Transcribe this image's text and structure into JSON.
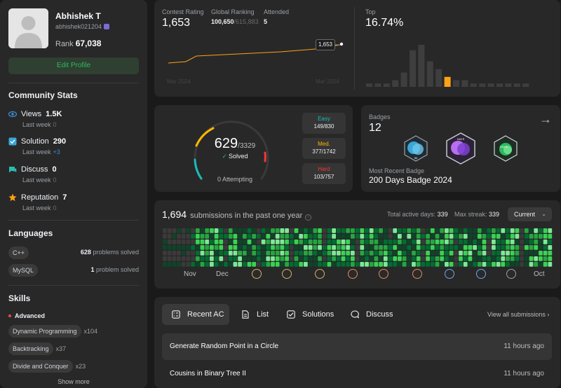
{
  "profile": {
    "name": "Abhishek T",
    "username": "abhishek021204",
    "rank_label": "Rank",
    "rank": "67,038",
    "edit_button": "Edit Profile"
  },
  "community": {
    "title": "Community Stats",
    "stats": [
      {
        "label": "Views",
        "value": "1.5K",
        "sub": "Last week",
        "delta": "0",
        "icon": "eye-icon",
        "color": "#3a8dd6"
      },
      {
        "label": "Solution",
        "value": "290",
        "sub": "Last week",
        "delta": "+3",
        "icon": "check-square-icon",
        "color": "#3aa7d8"
      },
      {
        "label": "Discuss",
        "value": "0",
        "sub": "Last week",
        "delta": "0",
        "icon": "chat-icon",
        "color": "#2cbbb0"
      },
      {
        "label": "Reputation",
        "value": "7",
        "sub": "Last week",
        "delta": "0",
        "icon": "star-icon",
        "color": "#ffa116"
      }
    ]
  },
  "languages": {
    "title": "Languages",
    "items": [
      {
        "name": "C++",
        "count": "628",
        "suffix": "problems solved"
      },
      {
        "name": "MySQL",
        "count": "1",
        "suffix": "problem solved"
      }
    ]
  },
  "skills": {
    "title": "Skills",
    "level": "Advanced",
    "items": [
      {
        "name": "Dynamic Programming",
        "count": "x104"
      },
      {
        "name": "Backtracking",
        "count": "x37"
      },
      {
        "name": "Divide and Conquer",
        "count": "x23"
      }
    ],
    "show_more": "Show more"
  },
  "contest": {
    "rating_label": "Contest Rating",
    "rating": "1,653",
    "global_label": "Global Ranking",
    "global_rank": "100,650",
    "global_total": "/615,883",
    "attended_label": "Attended",
    "attended": "5",
    "tooltip": "1,653",
    "x_start": "Mar 2024",
    "x_end": "Mar 2024",
    "top_label": "Top",
    "top_value": "16.74%",
    "histogram": [
      3,
      3,
      3,
      6,
      13,
      33,
      38,
      23,
      16,
      9,
      6,
      6,
      3,
      3,
      3,
      3,
      3,
      3,
      3
    ],
    "highlight_index": 9,
    "line_color": "#ffa116"
  },
  "solved": {
    "count": "629",
    "total": "/3329",
    "solved_label": "Solved",
    "attempting": "0 Attempting",
    "easy": {
      "label": "Easy",
      "value": "149/830",
      "color": "#1cbaba"
    },
    "medium": {
      "label": "Med.",
      "value": "377/1742",
      "color": "#ffb700"
    },
    "hard": {
      "label": "Hard",
      "value": "103/757",
      "color": "#f63737"
    }
  },
  "badges": {
    "title": "Badges",
    "count": "12",
    "recent_label": "Most Recent Badge",
    "recent_name": "200 Days Badge 2024",
    "icons": [
      "badge-50-days-icon",
      "badge-100-days-icon",
      "badge-50-days-green-icon"
    ]
  },
  "submissions": {
    "count": "1,694",
    "text": "submissions in the past one year",
    "active_label": "Total active days:",
    "active_days": "339",
    "streak_label": "Max streak:",
    "max_streak": "339",
    "select_value": "Current",
    "months": [
      "Nov",
      "Dec",
      "Oct"
    ]
  },
  "recent": {
    "tabs": [
      {
        "label": "Recent AC",
        "icon": "list-check-icon"
      },
      {
        "label": "List",
        "icon": "document-icon"
      },
      {
        "label": "Solutions",
        "icon": "check-box-icon"
      },
      {
        "label": "Discuss",
        "icon": "discuss-icon"
      }
    ],
    "view_all": "View all submissions",
    "rows": [
      {
        "title": "Generate Random Point in a Circle",
        "time": "11 hours ago"
      },
      {
        "title": "Cousins in Binary Tree II",
        "time": "11 hours ago"
      }
    ]
  }
}
